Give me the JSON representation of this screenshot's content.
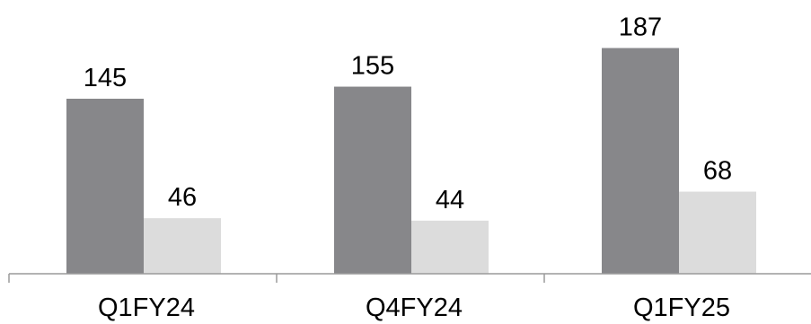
{
  "chart_data": {
    "type": "bar",
    "categories": [
      "Q1FY24",
      "Q4FY24",
      "Q1FY25"
    ],
    "series": [
      {
        "values": [
          145,
          155,
          187
        ],
        "color": "#87878a"
      },
      {
        "values": [
          46,
          44,
          68
        ],
        "color": "#dcdcdc"
      }
    ],
    "ylim": [
      0,
      200
    ],
    "grid": false,
    "legend": "none",
    "data_labels": true
  }
}
